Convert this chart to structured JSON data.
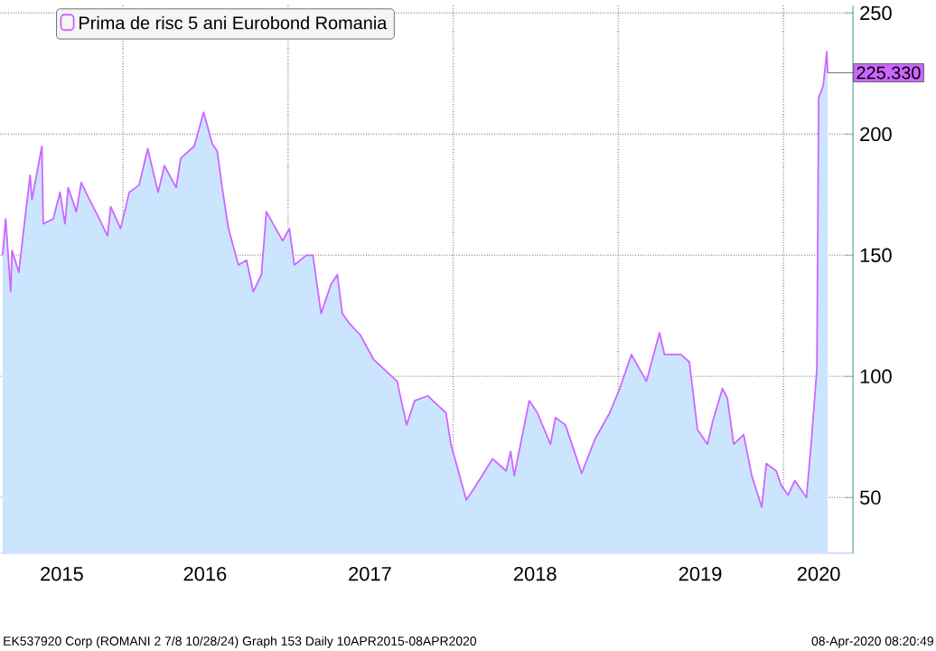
{
  "chart_data": {
    "type": "area",
    "x": [
      "2015-04-10",
      "2015-04-17",
      "2015-04-28",
      "2015-05-01",
      "2015-05-16",
      "2015-05-27",
      "2015-06-10",
      "2015-06-14",
      "2015-07-06",
      "2015-07-09",
      "2015-07-31",
      "2015-08-15",
      "2015-08-26",
      "2015-09-02",
      "2015-09-20",
      "2015-10-01",
      "2015-10-19",
      "2015-11-10",
      "2015-11-28",
      "2015-12-05",
      "2015-12-27",
      "2016-01-15",
      "2016-02-06",
      "2016-02-25",
      "2016-03-19",
      "2016-04-02",
      "2016-04-28",
      "2016-05-08",
      "2016-06-07",
      "2016-06-28",
      "2016-07-17",
      "2016-07-28",
      "2016-08-08",
      "2016-08-22",
      "2016-09-13",
      "2016-10-01",
      "2016-10-16",
      "2016-11-03",
      "2016-11-14",
      "2016-12-05",
      "2016-12-20",
      "2017-01-04",
      "2017-01-15",
      "2017-02-10",
      "2017-02-25",
      "2017-03-15",
      "2017-04-06",
      "2017-04-20",
      "2017-05-01",
      "2017-05-16",
      "2017-06-10",
      "2017-07-09",
      "2017-08-30",
      "2017-09-20",
      "2017-10-08",
      "2017-11-06",
      "2017-11-17",
      "2017-12-16",
      "2017-12-27",
      "2018-01-30",
      "2018-02-17",
      "2018-03-29",
      "2018-04-28",
      "2018-05-08",
      "2018-05-16",
      "2018-06-18",
      "2018-07-06",
      "2018-08-04",
      "2018-08-15",
      "2018-09-06",
      "2018-10-12",
      "2018-11-10",
      "2018-12-13",
      "2019-01-04",
      "2019-01-30",
      "2019-03-04",
      "2019-04-02",
      "2019-04-13",
      "2019-05-19",
      "2019-06-07",
      "2019-06-25",
      "2019-07-17",
      "2019-07-28",
      "2019-08-19",
      "2019-08-30",
      "2019-09-13",
      "2019-10-05",
      "2019-10-23",
      "2019-11-14",
      "2019-11-24",
      "2019-12-16",
      "2019-12-27",
      "2020-01-11",
      "2020-01-26",
      "2020-02-21",
      "2020-03-04",
      "2020-03-15",
      "2020-03-19",
      "2020-03-29",
      "2020-04-06",
      "2020-04-08"
    ],
    "series": [
      {
        "name": "Prima de risc 5 ani Eurobond Romania",
        "color": "#cc66ff",
        "values": [
          150,
          165,
          135,
          152,
          143,
          161,
          183,
          173,
          195,
          163,
          165,
          176,
          163,
          178,
          168,
          180,
          173,
          165,
          158,
          170,
          161,
          176,
          179,
          194,
          176,
          187,
          178,
          190,
          195,
          209,
          196,
          193,
          178,
          161,
          146,
          148,
          135,
          142,
          168,
          161,
          156,
          161,
          146,
          150,
          150,
          126,
          138,
          142,
          126,
          122,
          117,
          107,
          98,
          80,
          90,
          92,
          90,
          85,
          72,
          49,
          54,
          66,
          61,
          69,
          59,
          90,
          85,
          72,
          83,
          80,
          60,
          74,
          85,
          95,
          109,
          98,
          118,
          109,
          109,
          106,
          78,
          72,
          81,
          95,
          91,
          72,
          76,
          59,
          46,
          64,
          61,
          55,
          51,
          57,
          50,
          76,
          103,
          215,
          220,
          234,
          225.33
        ]
      }
    ],
    "xlim": [
      "2015-04-06",
      "2020-06-03"
    ],
    "ylim": [
      27,
      253
    ],
    "yticks": [
      50,
      100,
      150,
      200,
      250
    ],
    "xticks": [
      {
        "value": "2016-01-01",
        "label": null
      },
      {
        "value": "2017-01-01",
        "label": null
      },
      {
        "value": "2018-01-01",
        "label": null
      },
      {
        "value": "2019-01-01",
        "label": null
      },
      {
        "value": "2020-01-01",
        "label": null
      },
      {
        "value": "2015-08-19",
        "label": "2015"
      },
      {
        "value": "2016-07-01",
        "label": "2016"
      },
      {
        "value": "2017-07-01",
        "label": "2017"
      },
      {
        "value": "2018-07-01",
        "label": "2018"
      },
      {
        "value": "2019-07-01",
        "label": "2019"
      },
      {
        "value": "2020-03-19",
        "label": "2020"
      }
    ],
    "grid": true,
    "legend": "top left",
    "annotations": [
      {
        "text": "225.330",
        "x": "2020-04-08",
        "y": 225.33
      },
      "EK537920 Corp (ROMANI 2 7/8 10/28/24) Graph 153  Daily 10APR2015-08APR2020",
      "08-Apr-2020 08:20:49"
    ]
  }
}
